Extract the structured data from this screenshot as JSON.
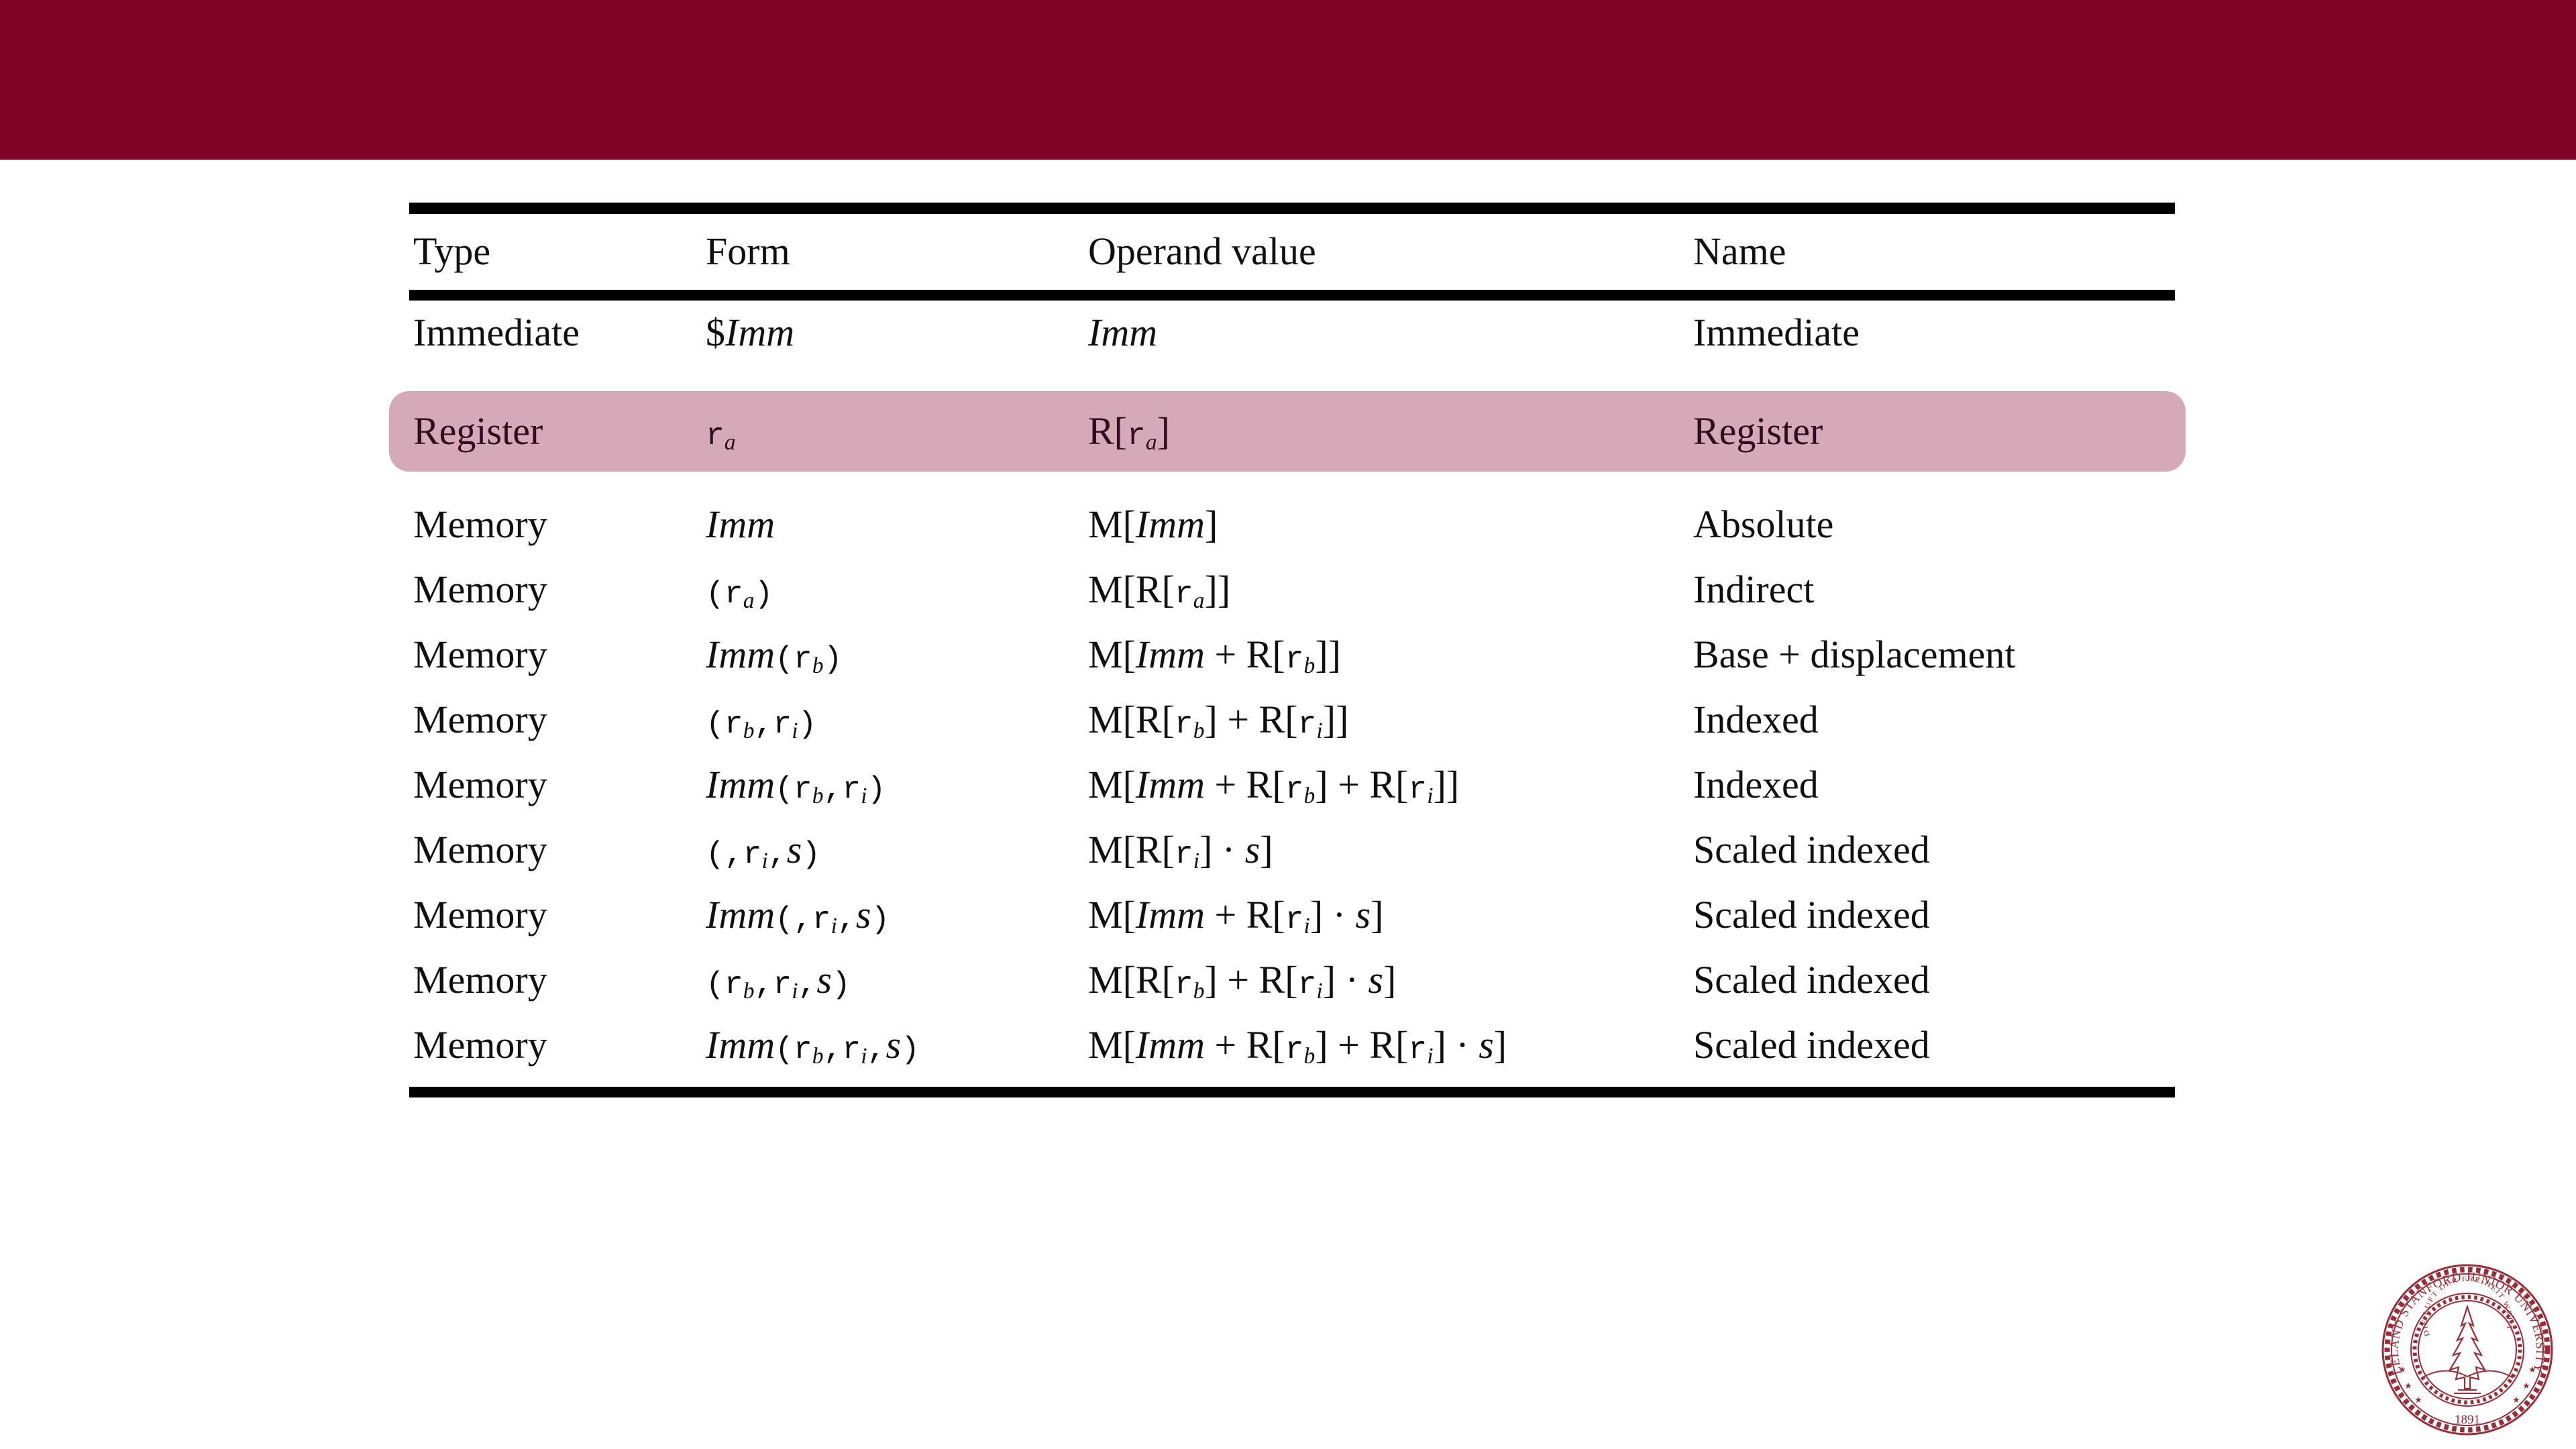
{
  "slide": {
    "header_bar_color": "#800327",
    "background_color": "#ffffff"
  },
  "table": {
    "columns": [
      "Type",
      "Form",
      "Operand value",
      "Name"
    ],
    "highlight": {
      "row_index": 1,
      "band_color": "#d5a9b8",
      "text_color": "#310c1e"
    },
    "rows": [
      {
        "type": "Immediate",
        "form": "$*Imm*",
        "operand": "*Imm*",
        "name": "Immediate"
      },
      {
        "type": "Register",
        "form": "`r`_a_",
        "operand": "R[`r`_a_]",
        "name": "Register"
      },
      {
        "type": "Memory",
        "form": "*Imm*",
        "operand": "M[*Imm*]",
        "name": "Absolute"
      },
      {
        "type": "Memory",
        "form": "`(r`_a_`)`",
        "operand": "M[R[`r`_a_]]",
        "name": "Indirect"
      },
      {
        "type": "Memory",
        "form": "*Imm*`(r`_b_`)`",
        "operand": "M[*Imm* + R[`r`_b_]]",
        "name": "Base + displacement"
      },
      {
        "type": "Memory",
        "form": "`(r`_b_`,r`_i_`)`",
        "operand": "M[R[`r`_b_] + R[`r`_i_]]",
        "name": "Indexed"
      },
      {
        "type": "Memory",
        "form": "*Imm*`(r`_b_`,r`_i_`)`",
        "operand": "M[*Imm* + R[`r`_b_] + R[`r`_i_]]",
        "name": "Indexed"
      },
      {
        "type": "Memory",
        "form": "`(,r`_i_`,`*s*`)`",
        "operand": "M[R[`r`_i_] · *s*]",
        "name": "Scaled indexed"
      },
      {
        "type": "Memory",
        "form": "*Imm*`(,r`_i_`,`*s*`)`",
        "operand": "M[*Imm* + R[`r`_i_] · *s*]",
        "name": "Scaled indexed"
      },
      {
        "type": "Memory",
        "form": "`(r`_b_`,r`_i_`,`*s*`)`",
        "operand": "M[R[`r`_b_] + R[`r`_i_] · *s*]",
        "name": "Scaled indexed"
      },
      {
        "type": "Memory",
        "form": "*Imm*`(r`_b_`,r`_i_`,`*s*`)`",
        "operand": "M[*Imm* + R[`r`_b_] + R[`r`_i_] · *s*]",
        "name": "Scaled indexed"
      }
    ]
  },
  "seal": {
    "color": "#962d38",
    "ring_text": "LELAND STANFORD JUNIOR UNIVERSITY",
    "motto_text": "DIE LUFT DER FREIHEIT WEHT",
    "year": "1891",
    "star_glyph": "★"
  }
}
